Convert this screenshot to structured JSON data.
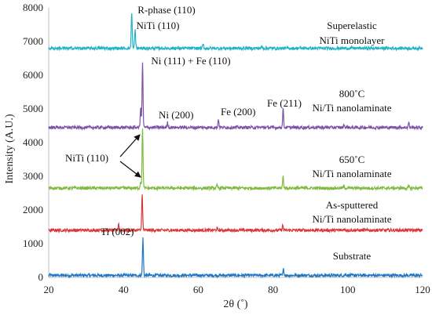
{
  "chart_data": {
    "type": "line",
    "xlabel": "2θ (˚)",
    "ylabel": "Intensity (A.U.)",
    "xlim": [
      20,
      120
    ],
    "ylim": [
      0,
      8000
    ],
    "xticks": [
      20,
      40,
      60,
      80,
      100,
      120
    ],
    "yticks": [
      0,
      1000,
      2000,
      3000,
      4000,
      5000,
      6000,
      7000,
      8000
    ],
    "grid": false,
    "series": [
      {
        "key": "substrate",
        "label_lines": [
          "Substrate"
        ],
        "color": "#1f77c4",
        "baseline": 60,
        "peaks": [
          [
            45.2,
            1100
          ],
          [
            82.8,
            180
          ],
          [
            99.5,
            40
          ]
        ]
      },
      {
        "key": "as_sputtered",
        "label_lines": [
          "As-sputtered",
          "Ni/Ti nanolaminate"
        ],
        "color": "#d9383a",
        "baseline": 1400,
        "peaks": [
          [
            38.7,
            200
          ],
          [
            45.0,
            1050
          ],
          [
            65.0,
            60
          ],
          [
            82.6,
            140
          ],
          [
            99.0,
            40
          ]
        ]
      },
      {
        "key": "650C",
        "label_lines": [
          "650˚C",
          "Ni/Ti nanolaminate"
        ],
        "color": "#7fbb3f",
        "baseline": 2650,
        "peaks": [
          [
            44.6,
            200
          ],
          [
            45.1,
            1800
          ],
          [
            65.0,
            80
          ],
          [
            82.7,
            350
          ],
          [
            99.0,
            60
          ],
          [
            116.3,
            60
          ]
        ]
      },
      {
        "key": "800C",
        "label_lines": [
          "800˚C",
          "Ni/Ti nanolaminate"
        ],
        "color": "#7d52a8",
        "baseline": 4450,
        "peaks": [
          [
            44.6,
            600
          ],
          [
            45.1,
            1900
          ],
          [
            51.8,
            150
          ],
          [
            65.4,
            250
          ],
          [
            82.7,
            550
          ],
          [
            99.0,
            80
          ],
          [
            116.3,
            150
          ]
        ]
      },
      {
        "key": "monolayer",
        "label_lines": [
          "Superelastic",
          "NiTi monolayer"
        ],
        "color": "#22b3c8",
        "baseline": 6800,
        "peaks": [
          [
            42.2,
            1100
          ],
          [
            43.1,
            550
          ],
          [
            61.3,
            120
          ],
          [
            77.0,
            60
          ]
        ]
      }
    ],
    "annotations": [
      {
        "text": "R-phase (110)",
        "x": 42.2,
        "y": 7920
      },
      {
        "text": "NiTi (110)",
        "x": 43.1,
        "y": 7550
      },
      {
        "text": "Ni (111) + Fe (110)",
        "x": 45.1,
        "y": 6450
      },
      {
        "text": "Ni (200)",
        "x": 51.8,
        "y": 4720
      },
      {
        "text": "Fe (200)",
        "x": 65.4,
        "y": 4920
      },
      {
        "text": "Fe (211)",
        "x": 82.7,
        "y": 5150
      },
      {
        "text": "Ti (002)",
        "x": 38.7,
        "y": 1750
      },
      {
        "text": "NiTi (110)",
        "x": 30.5,
        "y": 3470
      }
    ]
  }
}
